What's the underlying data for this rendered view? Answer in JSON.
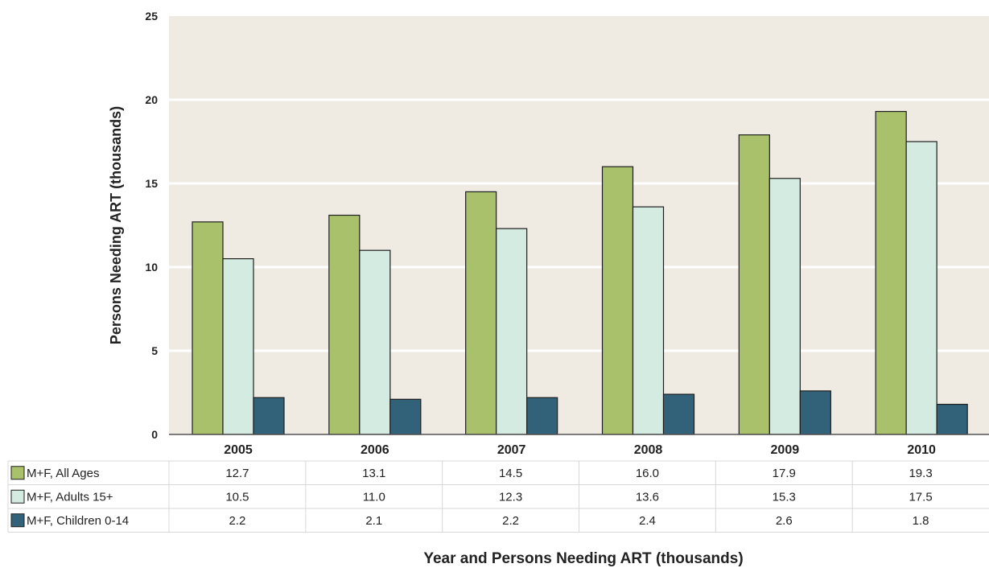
{
  "chart_data": {
    "type": "bar",
    "title": "",
    "xlabel": "Year and Persons Needing ART (thousands)",
    "ylabel": "Persons Needing ART (thousands)",
    "ylim": [
      0,
      25
    ],
    "yticks": [
      0,
      5,
      10,
      15,
      20,
      25
    ],
    "grid": true,
    "legend": "data-table-below",
    "categories": [
      "2005",
      "2006",
      "2007",
      "2008",
      "2009",
      "2010"
    ],
    "series": [
      {
        "name": "M+F, All Ages",
        "color": "#a9c16a",
        "values": [
          12.7,
          13.1,
          14.5,
          16.0,
          17.9,
          19.3
        ],
        "labels": [
          "12.7",
          "13.1",
          "14.5",
          "16.0",
          "17.9",
          "19.3"
        ]
      },
      {
        "name": "M+F, Adults 15+",
        "color": "#d3ebe1",
        "values": [
          10.5,
          11.0,
          12.3,
          13.6,
          15.3,
          17.5
        ],
        "labels": [
          "10.5",
          "11.0",
          "12.3",
          "13.6",
          "15.3",
          "17.5"
        ]
      },
      {
        "name": "M+F, Children 0-14",
        "color": "#32617a",
        "values": [
          2.2,
          2.1,
          2.2,
          2.4,
          2.6,
          1.8
        ],
        "labels": [
          "2.2",
          "2.1",
          "2.2",
          "2.4",
          "2.6",
          "1.8"
        ]
      }
    ],
    "colors": {
      "plot_background": "#efebe3",
      "gridline": "#ffffff",
      "bar_outline": "#1e1e1e"
    }
  }
}
